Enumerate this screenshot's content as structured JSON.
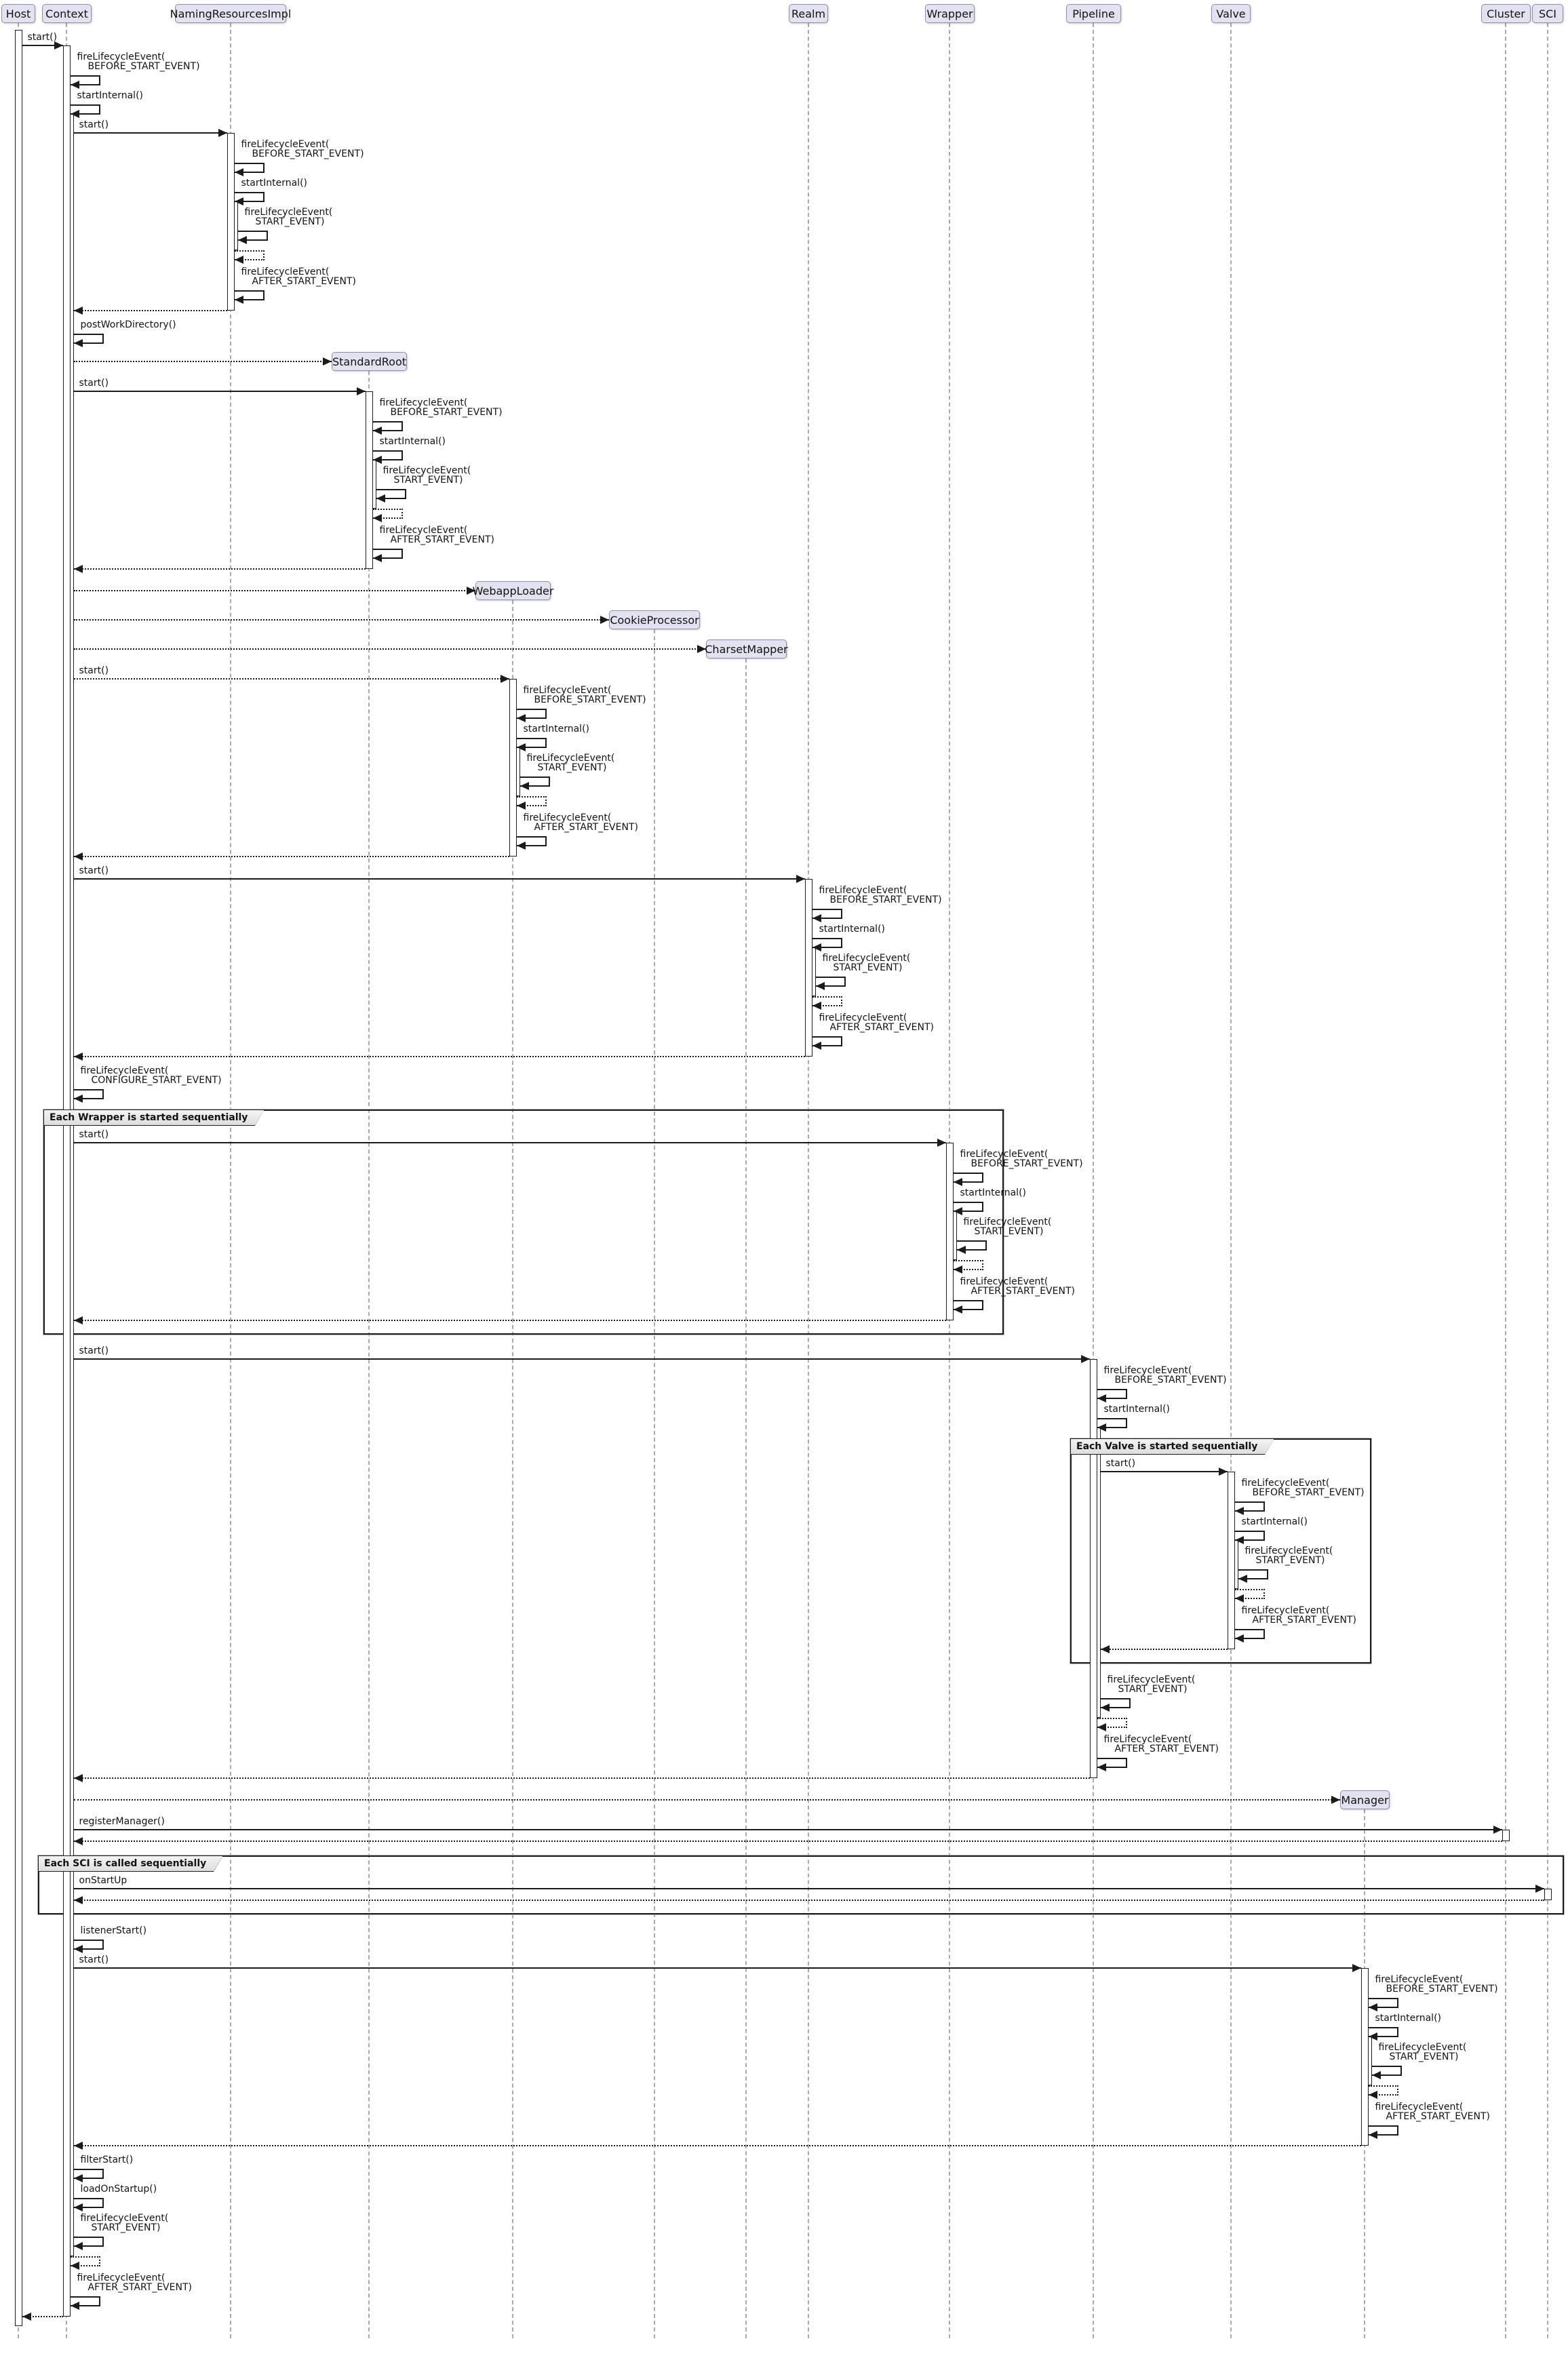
{
  "diagram_type": "uml-sequence-diagram",
  "subject": "Context startup lifecycle sequence",
  "colors": {
    "background": "#ffffff",
    "participant_fill": "#e2e2f0",
    "participant_border": "#8f8fa8",
    "lifeline": "#aaaab4",
    "line": "#1b1b1b",
    "activation_fill": "#ffffff",
    "frame_label_bg": "#ededed"
  },
  "participants": [
    {
      "id": "host",
      "label": "Host",
      "created": false
    },
    {
      "id": "context",
      "label": "Context",
      "created": false
    },
    {
      "id": "naming",
      "label": "NamingResourcesImpl",
      "created": false
    },
    {
      "id": "standardroot",
      "label": "StandardRoot",
      "created": true
    },
    {
      "id": "webapploader",
      "label": "WebappLoader",
      "created": true
    },
    {
      "id": "cookieprocessor",
      "label": "CookieProcessor",
      "created": true
    },
    {
      "id": "charsetmapper",
      "label": "CharsetMapper",
      "created": true
    },
    {
      "id": "realm",
      "label": "Realm",
      "created": false
    },
    {
      "id": "wrapper",
      "label": "Wrapper",
      "created": false
    },
    {
      "id": "pipeline",
      "label": "Pipeline",
      "created": false
    },
    {
      "id": "valve",
      "label": "Valve",
      "created": false
    },
    {
      "id": "manager",
      "label": "Manager",
      "created": true
    },
    {
      "id": "cluster",
      "label": "Cluster",
      "created": false
    },
    {
      "id": "sci",
      "label": "SCI",
      "created": false
    }
  ],
  "frames": {
    "wrapper_loop": {
      "label": "Each Wrapper is started sequentially"
    },
    "valve_loop": {
      "label": "Each Valve is started sequentially"
    },
    "sci_loop": {
      "label": "Each SCI is called sequentially"
    }
  },
  "messages": [
    {
      "type": "call",
      "from": "host",
      "to": "context",
      "label": [
        "start()"
      ]
    },
    {
      "type": "self",
      "p": "context",
      "label": [
        "fireLifecycleEvent(",
        "BEFORE_START_EVENT)"
      ]
    },
    {
      "type": "self",
      "p": "context",
      "label": [
        "startInternal()"
      ],
      "nested": true
    },
    {
      "type": "call",
      "from": "context",
      "to": "naming",
      "label": [
        "start()"
      ]
    },
    {
      "type": "self",
      "p": "naming",
      "label": [
        "fireLifecycleEvent(",
        "BEFORE_START_EVENT)"
      ]
    },
    {
      "type": "self",
      "p": "naming",
      "label": [
        "startInternal()"
      ],
      "nested": true
    },
    {
      "type": "self",
      "p": "naming",
      "label": [
        "fireLifecycleEvent(",
        "START_EVENT)"
      ]
    },
    {
      "type": "dself",
      "p": "naming"
    },
    {
      "type": "self",
      "p": "naming",
      "label": [
        "fireLifecycleEvent(",
        "AFTER_START_EVENT)"
      ]
    },
    {
      "type": "ret",
      "from": "naming",
      "to": "context"
    },
    {
      "type": "self",
      "p": "context",
      "label": [
        "postWorkDirectory()"
      ]
    },
    {
      "type": "create",
      "from": "context",
      "to": "standardroot"
    },
    {
      "type": "call",
      "from": "context",
      "to": "standardroot",
      "label": [
        "start()"
      ]
    },
    {
      "type": "self",
      "p": "standardroot",
      "label": [
        "fireLifecycleEvent(",
        "BEFORE_START_EVENT)"
      ]
    },
    {
      "type": "self",
      "p": "standardroot",
      "label": [
        "startInternal()"
      ],
      "nested": true
    },
    {
      "type": "self",
      "p": "standardroot",
      "label": [
        "fireLifecycleEvent(",
        "START_EVENT)"
      ]
    },
    {
      "type": "dself",
      "p": "standardroot"
    },
    {
      "type": "self",
      "p": "standardroot",
      "label": [
        "fireLifecycleEvent(",
        "AFTER_START_EVENT)"
      ]
    },
    {
      "type": "ret",
      "from": "standardroot",
      "to": "context"
    },
    {
      "type": "create",
      "from": "context",
      "to": "webapploader"
    },
    {
      "type": "create",
      "from": "context",
      "to": "cookieprocessor"
    },
    {
      "type": "create",
      "from": "context",
      "to": "charsetmapper"
    },
    {
      "type": "call",
      "from": "context",
      "to": "webapploader",
      "label": [
        "start()"
      ],
      "style": "dashed"
    },
    {
      "type": "self",
      "p": "webapploader",
      "label": [
        "fireLifecycleEvent(",
        "BEFORE_START_EVENT)"
      ]
    },
    {
      "type": "self",
      "p": "webapploader",
      "label": [
        "startInternal()"
      ],
      "nested": true
    },
    {
      "type": "self",
      "p": "webapploader",
      "label": [
        "fireLifecycleEvent(",
        "START_EVENT)"
      ]
    },
    {
      "type": "dself",
      "p": "webapploader"
    },
    {
      "type": "self",
      "p": "webapploader",
      "label": [
        "fireLifecycleEvent(",
        "AFTER_START_EVENT)"
      ]
    },
    {
      "type": "ret",
      "from": "webapploader",
      "to": "context"
    },
    {
      "type": "call",
      "from": "context",
      "to": "realm",
      "label": [
        "start()"
      ]
    },
    {
      "type": "self",
      "p": "realm",
      "label": [
        "fireLifecycleEvent(",
        "BEFORE_START_EVENT)"
      ]
    },
    {
      "type": "self",
      "p": "realm",
      "label": [
        "startInternal()"
      ],
      "nested": true
    },
    {
      "type": "self",
      "p": "realm",
      "label": [
        "fireLifecycleEvent(",
        "START_EVENT)"
      ]
    },
    {
      "type": "dself",
      "p": "realm"
    },
    {
      "type": "self",
      "p": "realm",
      "label": [
        "fireLifecycleEvent(",
        "AFTER_START_EVENT)"
      ]
    },
    {
      "type": "ret",
      "from": "realm",
      "to": "context"
    },
    {
      "type": "self",
      "p": "context",
      "label": [
        "fireLifecycleEvent(",
        "CONFIGURE_START_EVENT)"
      ]
    },
    {
      "type": "frame_open",
      "frame": "wrapper_loop"
    },
    {
      "type": "call",
      "from": "context",
      "to": "wrapper",
      "label": [
        "start()"
      ]
    },
    {
      "type": "self",
      "p": "wrapper",
      "label": [
        "fireLifecycleEvent(",
        "BEFORE_START_EVENT)"
      ]
    },
    {
      "type": "self",
      "p": "wrapper",
      "label": [
        "startInternal()"
      ],
      "nested": true
    },
    {
      "type": "self",
      "p": "wrapper",
      "label": [
        "fireLifecycleEvent(",
        "START_EVENT)"
      ]
    },
    {
      "type": "dself",
      "p": "wrapper"
    },
    {
      "type": "self",
      "p": "wrapper",
      "label": [
        "fireLifecycleEvent(",
        "AFTER_START_EVENT)"
      ]
    },
    {
      "type": "ret",
      "from": "wrapper",
      "to": "context"
    },
    {
      "type": "frame_close",
      "frame": "wrapper_loop"
    },
    {
      "type": "call",
      "from": "context",
      "to": "pipeline",
      "label": [
        "start()"
      ]
    },
    {
      "type": "self",
      "p": "pipeline",
      "label": [
        "fireLifecycleEvent(",
        "BEFORE_START_EVENT)"
      ]
    },
    {
      "type": "self",
      "p": "pipeline",
      "label": [
        "startInternal()"
      ],
      "nested": true
    },
    {
      "type": "frame_open",
      "frame": "valve_loop"
    },
    {
      "type": "call",
      "from": "pipeline",
      "to": "valve",
      "label": [
        "start()"
      ]
    },
    {
      "type": "self",
      "p": "valve",
      "label": [
        "fireLifecycleEvent(",
        "BEFORE_START_EVENT)"
      ]
    },
    {
      "type": "self",
      "p": "valve",
      "label": [
        "startInternal()"
      ],
      "nested": true
    },
    {
      "type": "self",
      "p": "valve",
      "label": [
        "fireLifecycleEvent(",
        "START_EVENT)"
      ]
    },
    {
      "type": "dself",
      "p": "valve"
    },
    {
      "type": "self",
      "p": "valve",
      "label": [
        "fireLifecycleEvent(",
        "AFTER_START_EVENT)"
      ]
    },
    {
      "type": "ret",
      "from": "valve",
      "to": "pipeline"
    },
    {
      "type": "frame_close",
      "frame": "valve_loop"
    },
    {
      "type": "self",
      "p": "pipeline",
      "label": [
        "fireLifecycleEvent(",
        "START_EVENT)"
      ]
    },
    {
      "type": "dself",
      "p": "pipeline"
    },
    {
      "type": "self",
      "p": "pipeline",
      "label": [
        "fireLifecycleEvent(",
        "AFTER_START_EVENT)"
      ]
    },
    {
      "type": "ret",
      "from": "pipeline",
      "to": "context"
    },
    {
      "type": "create",
      "from": "context",
      "to": "manager"
    },
    {
      "type": "call",
      "from": "context",
      "to": "cluster",
      "label": [
        "registerManager()"
      ]
    },
    {
      "type": "ret",
      "from": "cluster",
      "to": "context"
    },
    {
      "type": "frame_open",
      "frame": "sci_loop"
    },
    {
      "type": "call",
      "from": "context",
      "to": "sci",
      "label": [
        "onStartUp"
      ]
    },
    {
      "type": "ret",
      "from": "sci",
      "to": "context"
    },
    {
      "type": "frame_close",
      "frame": "sci_loop"
    },
    {
      "type": "self",
      "p": "context",
      "label": [
        "listenerStart()"
      ]
    },
    {
      "type": "call",
      "from": "context",
      "to": "manager",
      "label": [
        "start()"
      ]
    },
    {
      "type": "self",
      "p": "manager",
      "label": [
        "fireLifecycleEvent(",
        "BEFORE_START_EVENT)"
      ]
    },
    {
      "type": "self",
      "p": "manager",
      "label": [
        "startInternal()"
      ],
      "nested": true
    },
    {
      "type": "self",
      "p": "manager",
      "label": [
        "fireLifecycleEvent(",
        "START_EVENT)"
      ]
    },
    {
      "type": "dself",
      "p": "manager"
    },
    {
      "type": "self",
      "p": "manager",
      "label": [
        "fireLifecycleEvent(",
        "AFTER_START_EVENT)"
      ]
    },
    {
      "type": "ret",
      "from": "manager",
      "to": "context"
    },
    {
      "type": "self",
      "p": "context",
      "label": [
        "filterStart()"
      ]
    },
    {
      "type": "self",
      "p": "context",
      "label": [
        "loadOnStartup()"
      ]
    },
    {
      "type": "self",
      "p": "context",
      "label": [
        "fireLifecycleEvent(",
        "START_EVENT)"
      ]
    },
    {
      "type": "dself",
      "p": "context"
    },
    {
      "type": "self",
      "p": "context",
      "label": [
        "fireLifecycleEvent(",
        "AFTER_START_EVENT)"
      ]
    },
    {
      "type": "ret",
      "from": "context",
      "to": "host"
    }
  ]
}
